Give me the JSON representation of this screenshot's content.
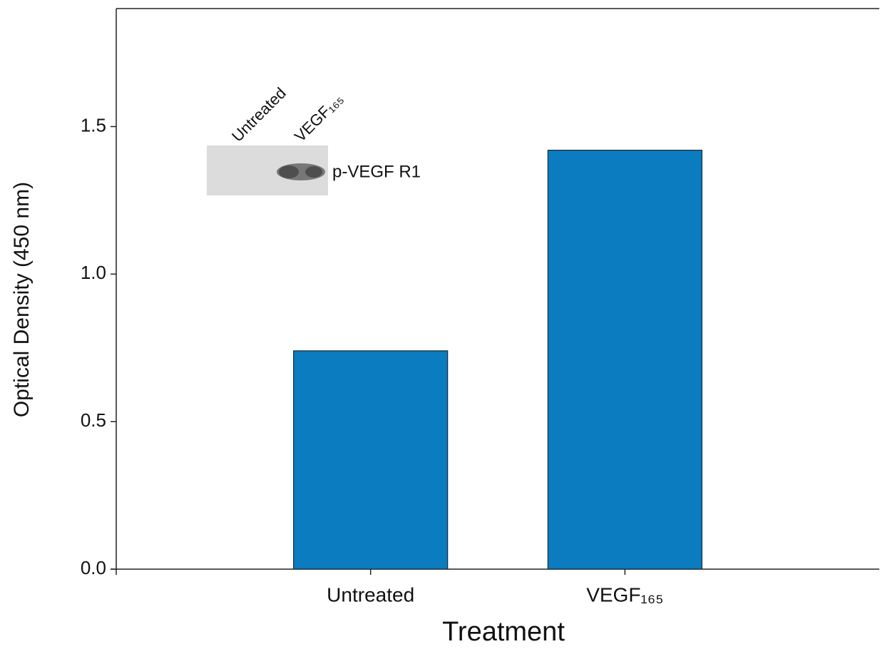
{
  "chart_data": {
    "type": "bar",
    "y_label": "Optical Density (450 nm)",
    "x_label": "Treatment",
    "categories": [
      "Untreated",
      "VEGF₁₆₅"
    ],
    "values": [
      0.74,
      1.42
    ],
    "color": "#0a7cbf",
    "ylim": [
      0,
      1.9
    ],
    "yticks": [
      {
        "value": 0,
        "label": "0.0"
      },
      0.5,
      {
        "value": 1,
        "label": "1.0"
      },
      1.5
    ],
    "annotations": {
      "lanes": [
        "Untreated",
        "VEGF₁₆₅"
      ],
      "band_label": "p-VEGF R1"
    }
  }
}
